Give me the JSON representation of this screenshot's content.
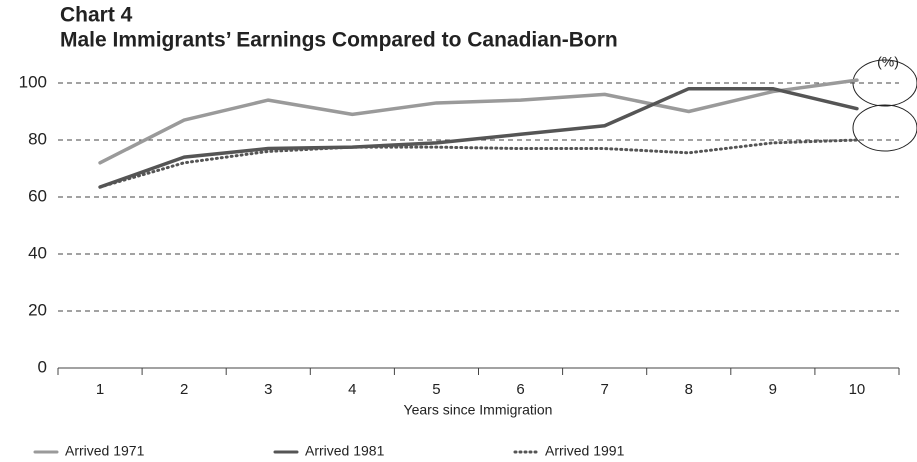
{
  "chart_data": {
    "type": "line",
    "title": "Chart 4",
    "subtitle": "Male Immigrants’ Earnings Compared to Canadian-Born",
    "ylabel": "(%)",
    "xlabel": "Years since Immigration",
    "categories": [
      "1",
      "2",
      "3",
      "4",
      "5",
      "6",
      "7",
      "8",
      "9",
      "10"
    ],
    "series": [
      {
        "name": "Arrived 1971",
        "color": "#9a9a9a",
        "dash": "solid",
        "values": [
          72,
          87,
          94,
          89,
          93,
          94,
          96,
          90,
          97,
          101
        ]
      },
      {
        "name": "Arrived 1981",
        "color": "#555555",
        "dash": "solid",
        "values": [
          63.5,
          74,
          77,
          77.5,
          79,
          82,
          85,
          98,
          98,
          91
        ]
      },
      {
        "name": "Arrived 1991",
        "color": "#555555",
        "dash": "dotted",
        "values": [
          63.5,
          72,
          76,
          77.5,
          77.5,
          77,
          77,
          75.5,
          79,
          80
        ]
      }
    ],
    "ylim": [
      0,
      100
    ],
    "yticks": [
      0,
      20,
      40,
      60,
      80,
      100
    ],
    "grid": true,
    "legend": "bottom"
  }
}
